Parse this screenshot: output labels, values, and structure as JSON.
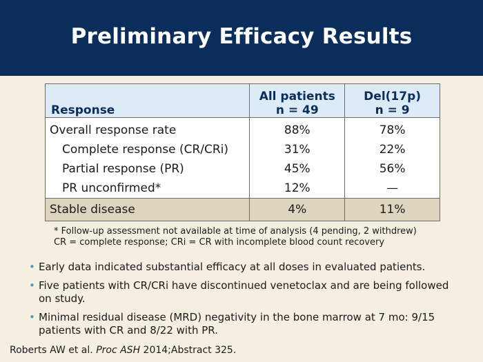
{
  "slide": {
    "title": "Preliminary Efficacy Results"
  },
  "table": {
    "headers": {
      "response": "Response",
      "col1_line1": "All patients",
      "col1_line2": "n = 49",
      "col2_line1": "Del(17p)",
      "col2_line2": "n = 9"
    },
    "rows": [
      {
        "label": "Overall response rate",
        "all": "88%",
        "del": "78%"
      },
      {
        "label": "Complete response (CR/CRi)",
        "all": "31%",
        "del": "22%"
      },
      {
        "label": "Partial response (PR)",
        "all": "45%",
        "del": "56%"
      },
      {
        "label": "PR unconfirmed*",
        "all": "12%",
        "del": "—"
      }
    ],
    "stable": {
      "label": "Stable disease",
      "all": "4%",
      "del": "11%"
    }
  },
  "footnotes": {
    "line1": "* Follow-up assessment not available at time of analysis (4 pending, 2 withdrew)",
    "line2": "CR = complete response; CRi = CR with incomplete blood count recovery"
  },
  "bullets": [
    "Early data indicated substantial efficacy at all doses in evaluated patients.",
    "Five patients with CR/CRi have discontinued venetoclax and are being followed on study.",
    "Minimal residual disease (MRD) negativity in the bone marrow at 7 mo: 9/15 patients with CR and 8/22 with PR."
  ],
  "citation": {
    "authors": "Roberts AW et al. ",
    "journal": "Proc ASH",
    "rest": " 2014;Abstract 325."
  },
  "colors": {
    "title_bar": "#0b2d5b",
    "background": "#f4efe0",
    "header_fill": "#dcebf5",
    "stable_fill": "#ddd5be",
    "bullet": "#3f9fbf"
  }
}
